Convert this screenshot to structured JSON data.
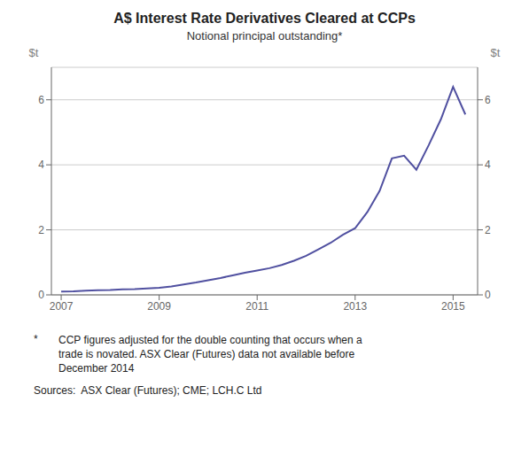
{
  "chart_data": {
    "type": "line",
    "title": "A$ Interest Rate Derivatives Cleared at CCPs",
    "subtitle": "Notional principal outstanding*",
    "ylabel": "$t",
    "y2label": "$t",
    "annotations": [
      "*",
      "CCP figures adjusted for the double counting that occurs when a\ntrade is novated. ASX Clear (Futures) data not available before\nDecember 2014",
      "Sources:  ASX Clear (Futures); CME; LCH.C Ltd"
    ],
    "color": "#5050a0",
    "grid": true,
    "xlim": [
      2006.8,
      2015.5
    ],
    "xticks": [
      2007,
      2009,
      2011,
      2013,
      2015
    ],
    "ylim": [
      0,
      7.0
    ],
    "yticks": [
      0,
      2,
      4,
      6
    ],
    "y2lim": [
      0,
      7.0
    ],
    "y2ticks": [
      0,
      2,
      4,
      6
    ],
    "x": [
      2007.0,
      2007.25,
      2007.5,
      2007.75,
      2008.0,
      2008.25,
      2008.5,
      2008.75,
      2009.0,
      2009.25,
      2009.5,
      2009.75,
      2010.0,
      2010.25,
      2010.5,
      2010.75,
      2011.0,
      2011.25,
      2011.5,
      2011.75,
      2012.0,
      2012.25,
      2012.5,
      2012.75,
      2013.0,
      2013.25,
      2013.5,
      2013.75,
      2014.0,
      2014.25,
      2014.5,
      2014.75,
      2015.0,
      2015.25
    ],
    "values": [
      0.1,
      0.11,
      0.13,
      0.14,
      0.15,
      0.17,
      0.18,
      0.2,
      0.22,
      0.26,
      0.32,
      0.38,
      0.45,
      0.52,
      0.6,
      0.68,
      0.75,
      0.82,
      0.92,
      1.05,
      1.2,
      1.4,
      1.6,
      1.85,
      2.05,
      2.55,
      3.2,
      4.2,
      4.28,
      3.85,
      4.6,
      5.4,
      6.4,
      5.55
    ]
  }
}
